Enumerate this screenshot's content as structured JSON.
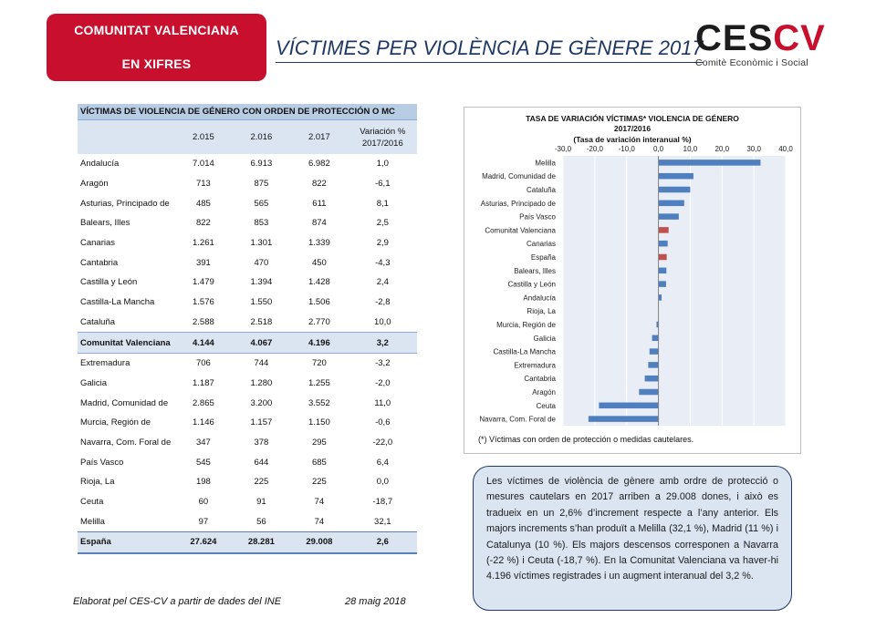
{
  "header": {
    "badge_line1": "COMUNITAT VALENCIANA",
    "badge_line2": "EN XIFRES",
    "title": "VÍCTIMES PER VIOLÈNCIA DE GÈNERE 2017",
    "logo_word_a": "CES",
    "logo_word_b": "CV",
    "logo_sub": "Comitè Econòmic i Social"
  },
  "table": {
    "title": "VÍCTIMAS DE VIOLENCIA DE GÉNERO CON ORDEN DE PROTECCIÓN O MC",
    "headers": [
      "",
      "2.015",
      "2.016",
      "2.017",
      "Variación %\n2017/2016"
    ],
    "rows": [
      [
        "Andalucía",
        "7.014",
        "6.913",
        "6.982",
        "1,0"
      ],
      [
        "Aragón",
        "713",
        "875",
        "822",
        "-6,1"
      ],
      [
        "Asturias, Principado de",
        "485",
        "565",
        "611",
        "8,1"
      ],
      [
        "Balears, Illes",
        "822",
        "853",
        "874",
        "2,5"
      ],
      [
        "Canarias",
        "1.261",
        "1.301",
        "1.339",
        "2,9"
      ],
      [
        "Cantabria",
        "391",
        "470",
        "450",
        "-4,3"
      ],
      [
        "Castilla y León",
        "1.479",
        "1.394",
        "1.428",
        "2,4"
      ],
      [
        "Castilla-La Mancha",
        "1.576",
        "1.550",
        "1.506",
        "-2,8"
      ],
      [
        "Cataluña",
        "2.588",
        "2.518",
        "2.770",
        "10,0"
      ],
      [
        "Comunitat Valenciana",
        "4.144",
        "4.067",
        "4.196",
        "3,2"
      ],
      [
        "Extremadura",
        "706",
        "744",
        "720",
        "-3,2"
      ],
      [
        "Galicia",
        "1.187",
        "1.280",
        "1.255",
        "-2,0"
      ],
      [
        "Madrid, Comunidad de",
        "2.865",
        "3.200",
        "3.552",
        "11,0"
      ],
      [
        "Murcia, Región de",
        "1.146",
        "1.157",
        "1.150",
        "-0,6"
      ],
      [
        "Navarra, Com. Foral de",
        "347",
        "378",
        "295",
        "-22,0"
      ],
      [
        "País Vasco",
        "545",
        "644",
        "685",
        "6,4"
      ],
      [
        "Rioja, La",
        "198",
        "225",
        "225",
        "0,0"
      ],
      [
        "Ceuta",
        "60",
        "91",
        "74",
        "-18,7"
      ],
      [
        "Melilla",
        "97",
        "56",
        "74",
        "32,1"
      ]
    ],
    "total": [
      "España",
      "27.624",
      "28.281",
      "29.008",
      "2,6"
    ]
  },
  "chart_data": {
    "type": "bar",
    "orientation": "horizontal",
    "title": "TASA DE VARIACIÓN VÍCTIMAS* VIOLENCIA DE GÉNERO",
    "title_line2": "2017/2016",
    "subtitle": "(Tasa de variación interanual %)",
    "xlim": [
      -30,
      40
    ],
    "xticks": [
      "-30,0",
      "-20,0",
      "-10,0",
      "0,0",
      "10,0",
      "20,0",
      "30,0",
      "40,0"
    ],
    "grid": true,
    "categories": [
      "Melilla",
      "Madrid, Comunidad de",
      "Cataluña",
      "Asturias, Principado de",
      "País Vasco",
      "Comunitat Valenciana",
      "Canarias",
      "España",
      "Balears, Illes",
      "Castilla y León",
      "Andalucía",
      "Rioja, La",
      "Murcia, Región de",
      "Galicia",
      "Castilla-La Mancha",
      "Extremadura",
      "Cantabria",
      "Aragón",
      "Ceuta",
      "Navarra, Com. Foral de"
    ],
    "values": [
      32.1,
      11.0,
      10.0,
      8.1,
      6.4,
      3.2,
      2.9,
      2.6,
      2.5,
      2.4,
      1.0,
      0.0,
      -0.6,
      -2.0,
      -2.8,
      -3.2,
      -4.3,
      -6.1,
      -18.7,
      -22.0
    ],
    "highlight": [
      "Comunitat Valenciana",
      "España"
    ],
    "colors": {
      "bar": "#4f7fbf",
      "highlight": "#c0504d",
      "plot_bg": "#e9eef6",
      "grid": "#ffffff"
    }
  },
  "footnote": "(*) Víctimas con orden de protección o medidas cautelares.",
  "summary": "Les víctimes de violència de gènere amb ordre de protecció o mesures cautelars en 2017 arriben a 29.008 dones, i això es tradueix en un 2,6% d’increment respecte a l’any anterior. Els majors increments s’han produït a Melilla (32,1 %), Madrid (11 %) i Catalunya (10 %). Els majors descensos corresponen a Navarra (-22 %) i Ceuta (-18,7 %). En la Comunitat Valenciana va haver-hi 4.196 víctimes registrades i un augment interanual del 3,2 %.",
  "footer": {
    "source": "Elaborat pel CES-CV a partir de dades del INE",
    "date": "28 maig 2018"
  }
}
